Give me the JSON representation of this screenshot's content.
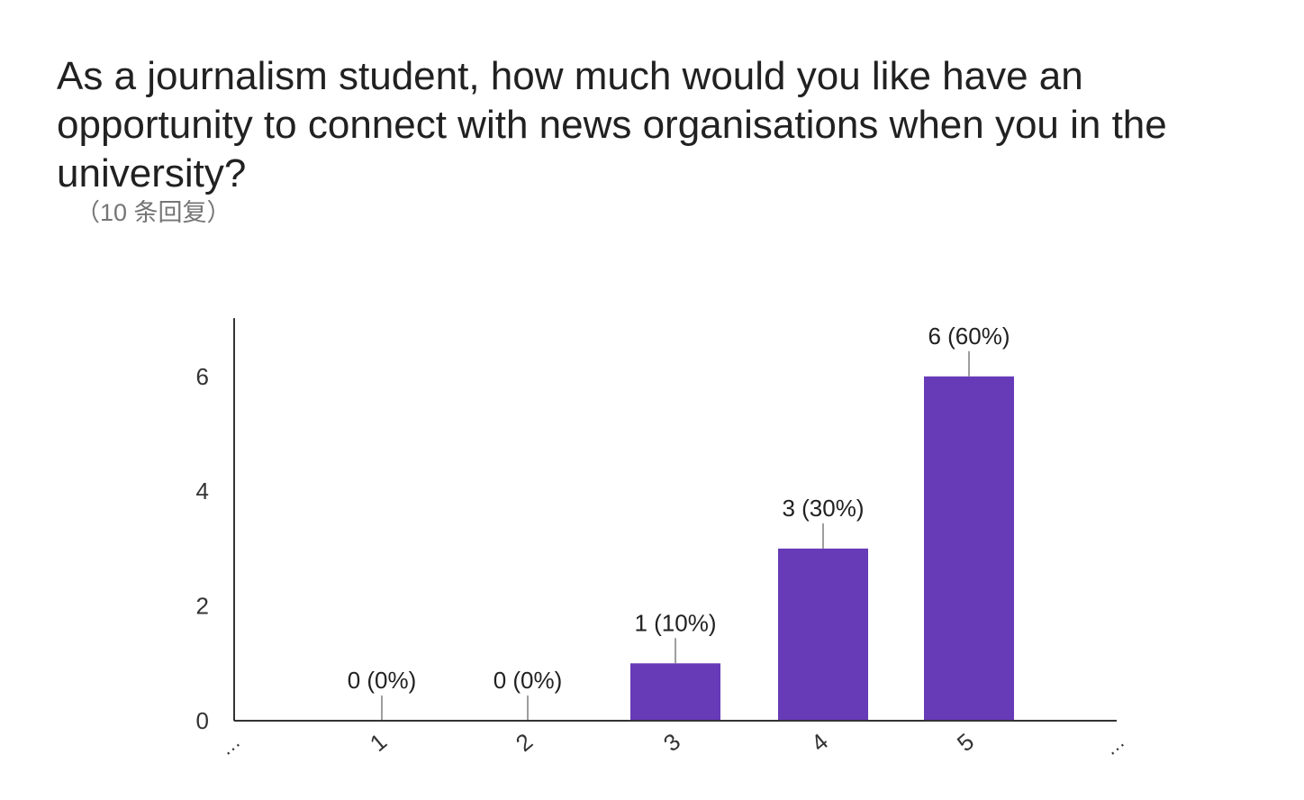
{
  "question": {
    "title": "As a journalism student, how much would you like have an opportunity to connect with news organisations when you in the university?",
    "responses": "（10 条回复）"
  },
  "colors": {
    "bar": "#673ab7",
    "text": "#212121",
    "axis": "#333333",
    "leader": "#9e9e9e"
  },
  "chart_data": {
    "type": "bar",
    "title": "",
    "xlabel": "",
    "ylabel": "",
    "categories": [
      "1",
      "2",
      "3",
      "4",
      "5"
    ],
    "values": [
      0,
      0,
      1,
      3,
      6
    ],
    "data_labels": [
      "0 (0%)",
      "0 (0%)",
      "1 (10%)",
      "3 (30%)",
      "6 (60%)"
    ],
    "yticks": [
      0,
      2,
      4,
      6
    ],
    "ylim": [
      0,
      7
    ],
    "edge_labels": [
      "…",
      "…"
    ],
    "grid": false,
    "legend": "none"
  }
}
